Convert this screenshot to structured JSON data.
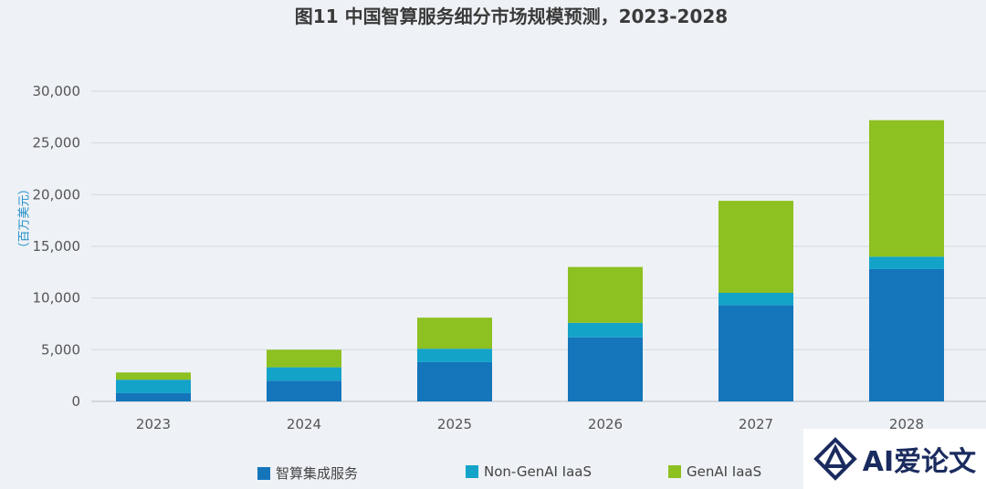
{
  "chart_data": {
    "type": "bar",
    "stacked": true,
    "title": "图11 中国智算服务细分市场规模预测，2023-2028",
    "ylabel": "（百万美元）",
    "categories": [
      "2023",
      "2024",
      "2025",
      "2026",
      "2027",
      "2028"
    ],
    "ylim": [
      0,
      30000
    ],
    "yticks": [
      "0",
      "5,000",
      "10,000",
      "15,000",
      "20,000",
      "25,000",
      "30,000"
    ],
    "grid": true,
    "legend_position": "bottom",
    "series": [
      {
        "name": "智算集成服务",
        "color": "#1475bb",
        "values": [
          800,
          2000,
          3800,
          6200,
          9300,
          12800
        ]
      },
      {
        "name": "Non-GenAI IaaS",
        "color": "#13a3c9",
        "values": [
          1300,
          1300,
          1300,
          1400,
          1200,
          1200
        ]
      },
      {
        "name": "GenAI IaaS",
        "color": "#8dc021",
        "values": [
          700,
          1700,
          3000,
          5400,
          8900,
          13200
        ]
      }
    ]
  },
  "logo": {
    "text": "AI爱论文"
  }
}
